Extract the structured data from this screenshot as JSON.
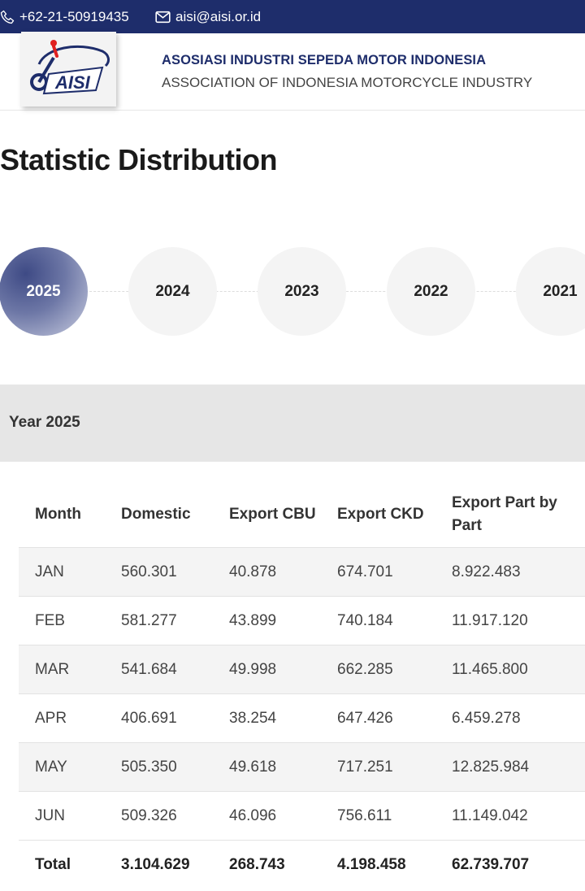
{
  "topbar": {
    "phone": "+62-21-50919435",
    "email": "aisi@aisi.or.id",
    "phone_icon": "phone-icon",
    "email_icon": "envelope-icon"
  },
  "header": {
    "logo_text": "AISI",
    "org_name": "ASOSIASI INDUSTRI SEPEDA MOTOR INDONESIA",
    "org_name_en": "ASSOCIATION OF INDONESIA MOTORCYCLE INDUSTRY"
  },
  "page_title": "Statistic Distribution",
  "years": [
    {
      "label": "2025",
      "active": true
    },
    {
      "label": "2024",
      "active": false
    },
    {
      "label": "2023",
      "active": false
    },
    {
      "label": "2022",
      "active": false
    },
    {
      "label": "2021",
      "active": false
    }
  ],
  "year_band": "Year 2025",
  "table": {
    "columns": [
      "Month",
      "Domestic",
      "Export CBU",
      "Export CKD",
      "Export Part by Part"
    ],
    "rows": [
      [
        "JAN",
        "560.301",
        "40.878",
        "674.701",
        "8.922.483"
      ],
      [
        "FEB",
        "581.277",
        "43.899",
        "740.184",
        "11.917.120"
      ],
      [
        "MAR",
        "541.684",
        "49.998",
        "662.285",
        "11.465.800"
      ],
      [
        "APR",
        "406.691",
        "38.254",
        "647.426",
        "6.459.278"
      ],
      [
        "MAY",
        "505.350",
        "49.618",
        "717.251",
        "12.825.984"
      ],
      [
        "JUN",
        "509.326",
        "46.096",
        "756.611",
        "11.149.042"
      ]
    ],
    "total": [
      "Total",
      "3.104.629",
      "268.743",
      "4.198.458",
      "62.739.707"
    ]
  },
  "colors": {
    "topbar": "#1e2d6b",
    "brand_red": "#e02020",
    "active_year": "#3e4a85",
    "band": "#e6e6e6"
  }
}
